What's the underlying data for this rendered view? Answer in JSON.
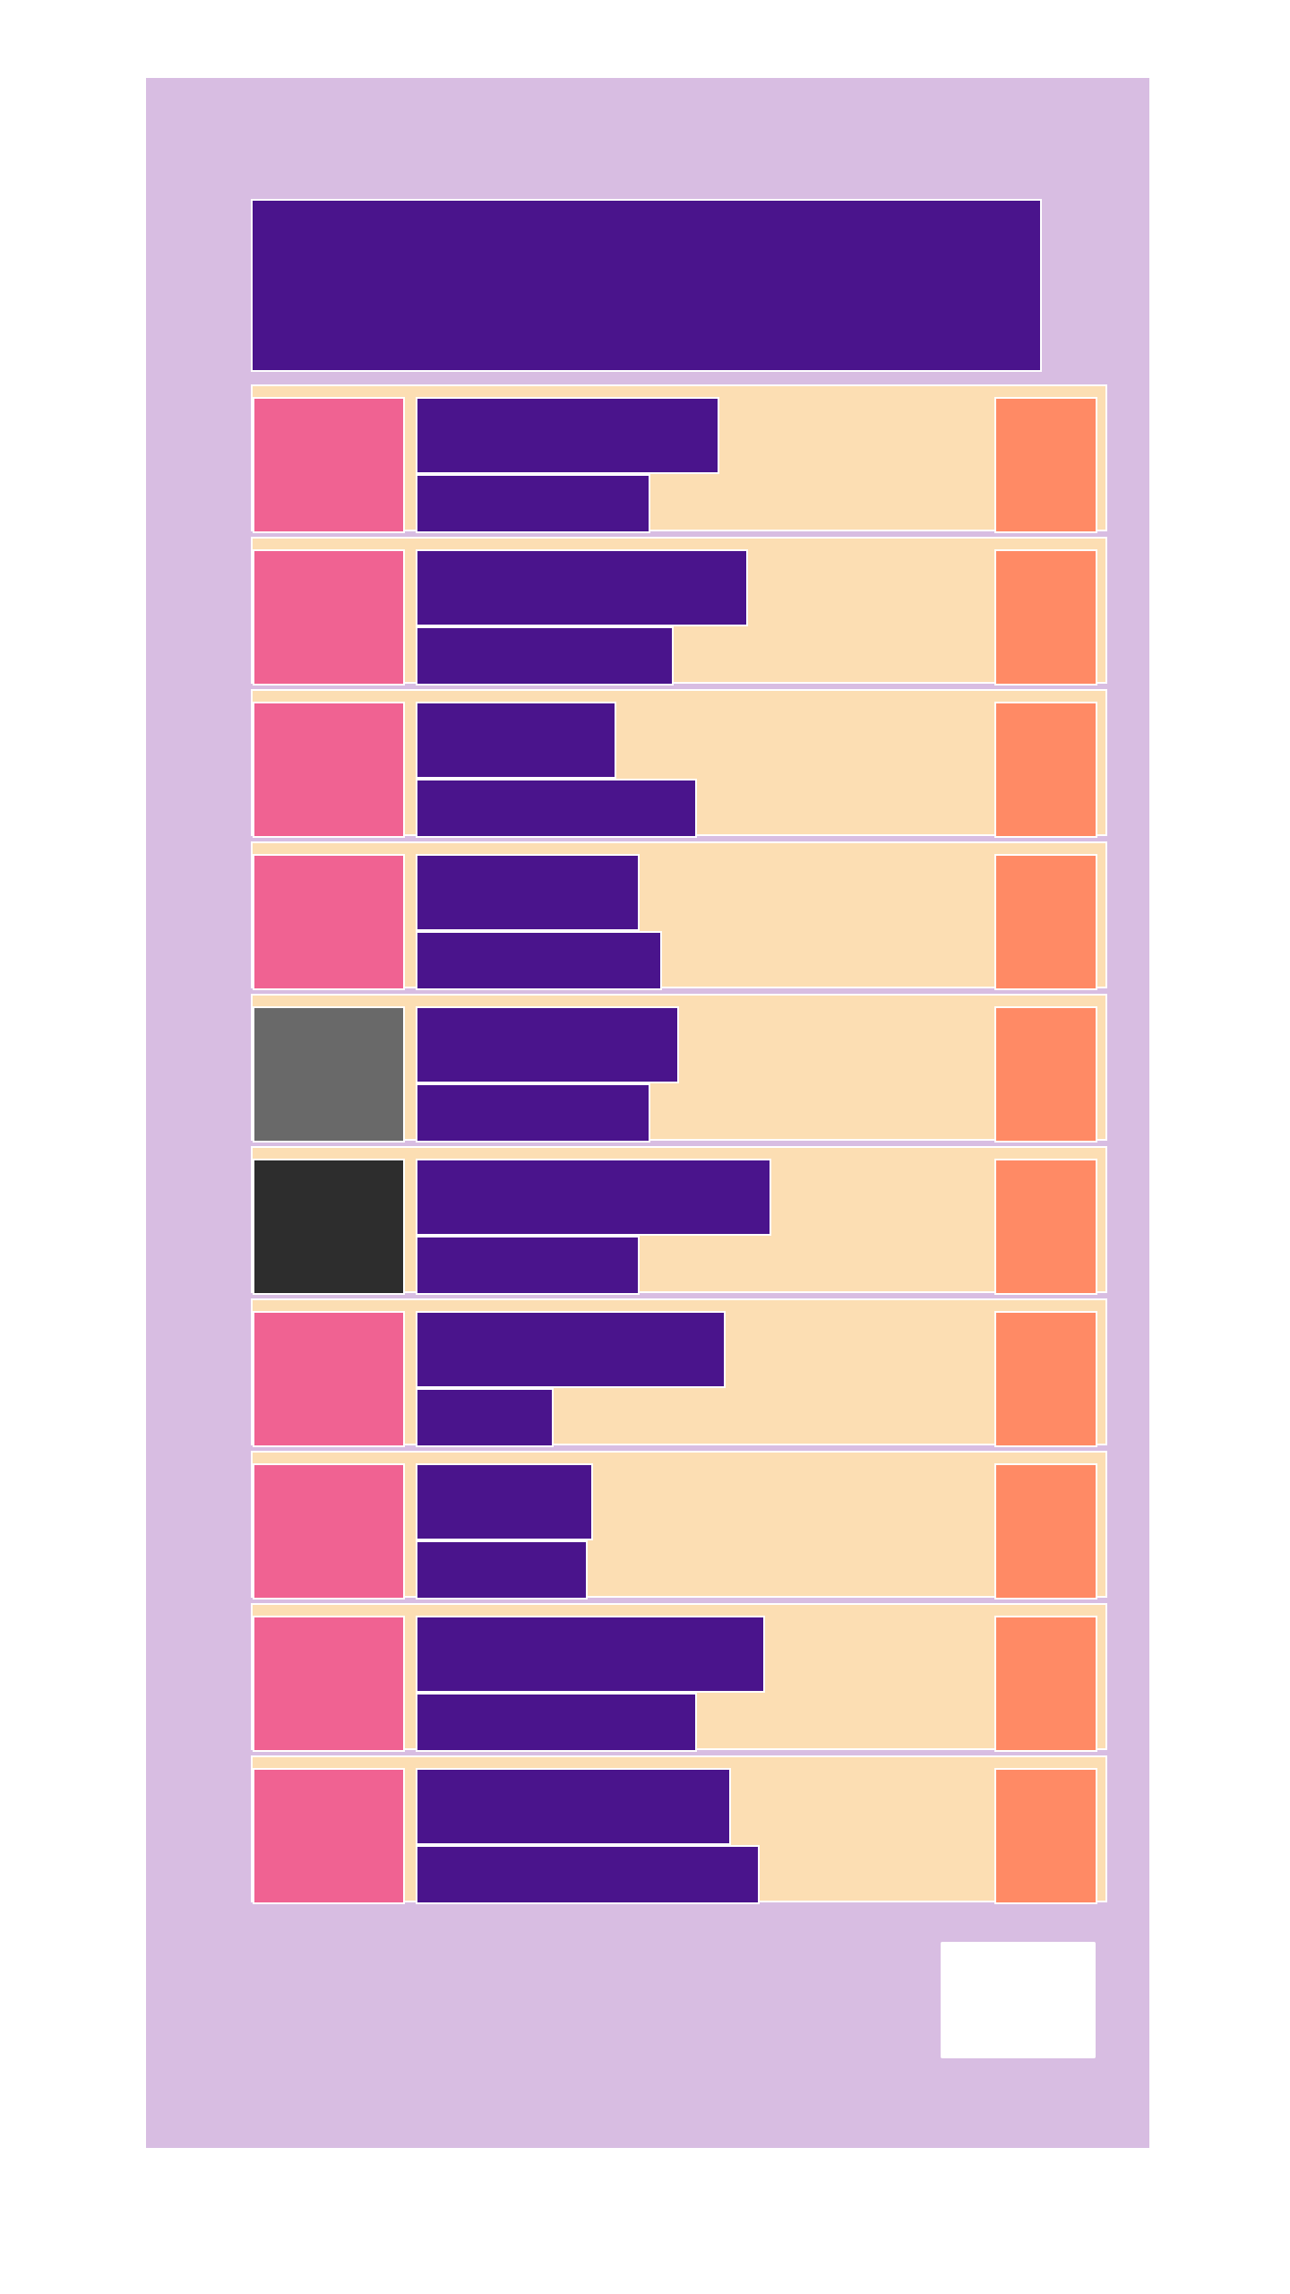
{
  "colors": {
    "page_background": "#ffffff",
    "panel_background": "#d8bde2",
    "header_background": "#4a148c",
    "item_background": "#fcdeb3",
    "text_placeholder": "#4a148c",
    "action_block": "#ff8a65",
    "footer_button": "#ffffff"
  },
  "list": {
    "items": [
      {
        "thumb_color": "#f06292",
        "line1_fraction": 0.53,
        "line2_fraction": 0.41
      },
      {
        "thumb_color": "#f06292",
        "line1_fraction": 0.58,
        "line2_fraction": 0.45
      },
      {
        "thumb_color": "#f06292",
        "line1_fraction": 0.35,
        "line2_fraction": 0.49
      },
      {
        "thumb_color": "#f06292",
        "line1_fraction": 0.39,
        "line2_fraction": 0.43
      },
      {
        "thumb_color": "#696969",
        "line1_fraction": 0.46,
        "line2_fraction": 0.41
      },
      {
        "thumb_color": "#2d2d2d",
        "line1_fraction": 0.62,
        "line2_fraction": 0.39
      },
      {
        "thumb_color": "#f06292",
        "line1_fraction": 0.54,
        "line2_fraction": 0.24
      },
      {
        "thumb_color": "#f06292",
        "line1_fraction": 0.31,
        "line2_fraction": 0.3
      },
      {
        "thumb_color": "#f06292",
        "line1_fraction": 0.61,
        "line2_fraction": 0.49
      },
      {
        "thumb_color": "#f06292",
        "line1_fraction": 0.55,
        "line2_fraction": 0.6
      }
    ]
  }
}
